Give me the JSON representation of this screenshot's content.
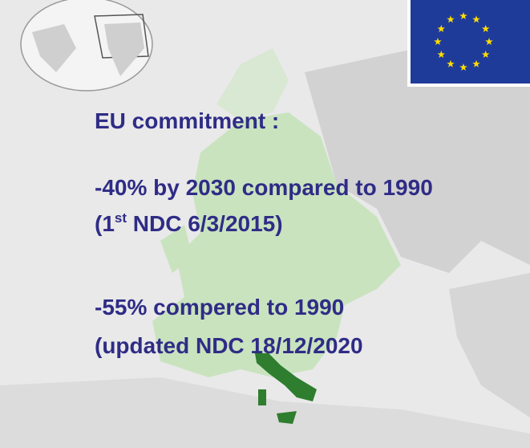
{
  "slide": {
    "heading": "EU commitment :",
    "target1": "-40%  by 2030 compared to 1990",
    "ndc1": {
      "before": "(1",
      "sup": "st",
      "after": " NDC 6/3/2015)"
    },
    "target2": "-55% compered to 1990",
    "ndc2": "(updated NDC 18/12/2020"
  }
}
